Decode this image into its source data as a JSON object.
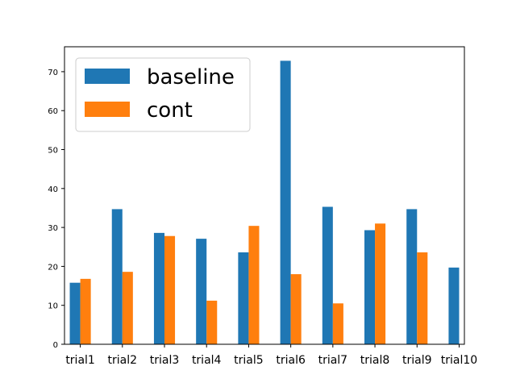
{
  "chart_data": {
    "type": "bar",
    "title": "",
    "xlabel": "",
    "ylabel": "",
    "categories": [
      "trial1",
      "trial2",
      "trial3",
      "trial4",
      "trial5",
      "trial6",
      "trial7",
      "trial8",
      "trial9",
      "trial10"
    ],
    "series": [
      {
        "name": "baseline",
        "color": "#1f77b4",
        "values": [
          15.8,
          34.7,
          28.6,
          27.1,
          23.6,
          72.8,
          35.3,
          29.3,
          34.7,
          19.7
        ]
      },
      {
        "name": "cont",
        "color": "#ff7f0e",
        "values": [
          16.8,
          18.6,
          27.8,
          11.2,
          30.4,
          18.0,
          10.5,
          31.0,
          23.6,
          0
        ]
      }
    ],
    "ylim": [
      0,
      76.4
    ],
    "yticks": [
      0,
      10,
      20,
      30,
      40,
      50,
      60,
      70
    ],
    "grid": false,
    "legend_position": "top-left"
  }
}
